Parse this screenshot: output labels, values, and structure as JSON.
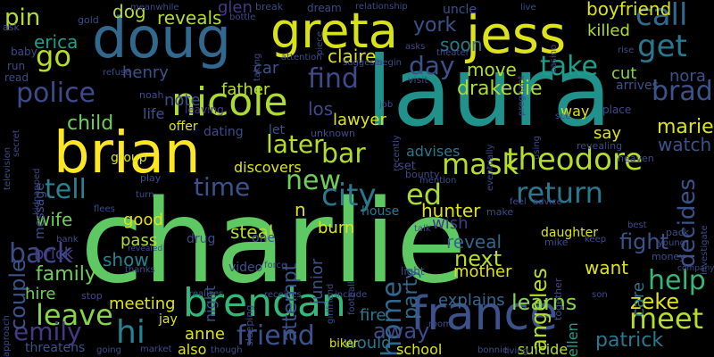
{
  "cloud": {
    "background": "#000000",
    "words": [
      {
        "text": "charlie",
        "color": "#5ec962"
      },
      {
        "text": "laura",
        "color": "#21918c"
      },
      {
        "text": "brian",
        "color": "#fde725"
      },
      {
        "text": "doug",
        "color": "#31688e"
      },
      {
        "text": "greta",
        "color": "#d8e219"
      },
      {
        "text": "jess",
        "color": "#dde318"
      },
      {
        "text": "france",
        "color": "#3b528b"
      },
      {
        "text": "nicole",
        "color": "#addc30"
      },
      {
        "text": "brendan",
        "color": "#35b779"
      },
      {
        "text": "police",
        "color": "#3e4a89"
      },
      {
        "text": "theodore",
        "color": "#b5de2b"
      },
      {
        "text": "mask",
        "color": "#b5de2b"
      },
      {
        "text": "go",
        "color": "#b5de2b"
      },
      {
        "text": "pin",
        "color": "#b5de2b"
      },
      {
        "text": "get",
        "color": "#2a788e"
      },
      {
        "text": "call",
        "color": "#31688e"
      },
      {
        "text": "brad",
        "color": "#3b528b"
      },
      {
        "text": "find",
        "color": "#3e4a89"
      },
      {
        "text": "take",
        "color": "#1f9e89"
      },
      {
        "text": "day",
        "color": "#3b528b"
      },
      {
        "text": "later",
        "color": "#b5de2b"
      },
      {
        "text": "bar",
        "color": "#addc30"
      },
      {
        "text": "tell",
        "color": "#26828e"
      },
      {
        "text": "time",
        "color": "#3b528b"
      },
      {
        "text": "new",
        "color": "#6ece58"
      },
      {
        "text": "city",
        "color": "#2a788e"
      },
      {
        "text": "ed",
        "color": "#addc30"
      },
      {
        "text": "return",
        "color": "#2a788e"
      },
      {
        "text": "decides",
        "color": "#3b528b"
      },
      {
        "text": "help",
        "color": "#35b779"
      },
      {
        "text": "meet",
        "color": "#b5de2b"
      },
      {
        "text": "hi",
        "color": "#26828e"
      },
      {
        "text": "leave",
        "color": "#86d549"
      },
      {
        "text": "back",
        "color": "#3e4a89"
      },
      {
        "text": "emily",
        "color": "#443a83"
      },
      {
        "text": "friend",
        "color": "#3b528b"
      },
      {
        "text": "home",
        "color": "#31688e"
      },
      {
        "text": "couple",
        "color": "#3b528b"
      },
      {
        "text": "child",
        "color": "#6ece58"
      },
      {
        "text": "wife",
        "color": "#6ece58"
      },
      {
        "text": "family",
        "color": "#6ece58"
      },
      {
        "text": "angeles",
        "color": "#b5de2b"
      },
      {
        "text": "next",
        "color": "#b5de2b"
      },
      {
        "text": "learns",
        "color": "#86d549"
      },
      {
        "text": "zeke",
        "color": "#dde318"
      },
      {
        "text": "patrick",
        "color": "#2a788e"
      },
      {
        "text": "away",
        "color": "#3e4a89"
      },
      {
        "text": "party",
        "color": "#31688e"
      },
      {
        "text": "fight",
        "color": "#3b528b"
      },
      {
        "text": "want",
        "color": "#dde318"
      },
      {
        "text": "move",
        "color": "#b5de2b"
      },
      {
        "text": "drakedie",
        "color": "#addc30"
      },
      {
        "text": "killed",
        "color": "#addc30"
      },
      {
        "text": "boyfriend",
        "color": "#dde318"
      },
      {
        "text": "york",
        "color": "#3b528b"
      },
      {
        "text": "soon",
        "color": "#2a788e"
      },
      {
        "text": "claire",
        "color": "#dde318"
      },
      {
        "text": "reveals",
        "color": "#b5de2b"
      },
      {
        "text": "erica",
        "color": "#1f9e89"
      },
      {
        "text": "dog",
        "color": "#b5de2b"
      },
      {
        "text": "glen",
        "color": "#443a83"
      },
      {
        "text": "henry",
        "color": "#3b528b"
      },
      {
        "text": "note",
        "color": "#3b528b"
      },
      {
        "text": "father",
        "color": "#b5de2b"
      },
      {
        "text": "car",
        "color": "#3b528b"
      },
      {
        "text": "lawyer",
        "color": "#dde318"
      },
      {
        "text": "los",
        "color": "#3e4a89"
      },
      {
        "text": "attempt",
        "color": "#3b528b"
      },
      {
        "text": "junior",
        "color": "#3b528b"
      },
      {
        "text": "hunter",
        "color": "#dde318"
      },
      {
        "text": "reveal",
        "color": "#31688e"
      },
      {
        "text": "mother",
        "color": "#dde318"
      },
      {
        "text": "explains",
        "color": "#31688e"
      },
      {
        "text": "marie",
        "color": "#dde318"
      },
      {
        "text": "watch",
        "color": "#3b528b"
      },
      {
        "text": "say",
        "color": "#dde318"
      },
      {
        "text": "cut",
        "color": "#86d549"
      },
      {
        "text": "nora",
        "color": "#3b528b"
      },
      {
        "text": "arrives",
        "color": "#3b528b"
      },
      {
        "text": "steal",
        "color": "#b5de2b"
      },
      {
        "text": "burn",
        "color": "#dde318"
      },
      {
        "text": "pass",
        "color": "#b5de2b"
      },
      {
        "text": "show",
        "color": "#26828e"
      },
      {
        "text": "good",
        "color": "#dde318"
      },
      {
        "text": "brick",
        "color": "#443a83"
      },
      {
        "text": "hire",
        "color": "#6ece58"
      },
      {
        "text": "meeting",
        "color": "#dde318"
      },
      {
        "text": "anne",
        "color": "#dde318"
      },
      {
        "text": "would",
        "color": "#2a788e"
      },
      {
        "text": "fire",
        "color": "#2a788e"
      },
      {
        "text": "school",
        "color": "#dde318"
      },
      {
        "text": "suicide",
        "color": "#b5de2b"
      },
      {
        "text": "ellen",
        "color": "#1f9e89"
      },
      {
        "text": "discovers",
        "color": "#dde318"
      },
      {
        "text": "advises",
        "color": "#2a788e"
      },
      {
        "text": "message",
        "color": "#3b528b"
      },
      {
        "text": "life",
        "color": "#3b528b"
      },
      {
        "text": "offer",
        "color": "#dde318"
      },
      {
        "text": "dating",
        "color": "#3e4a89"
      },
      {
        "text": "let",
        "color": "#3b528b"
      },
      {
        "text": "video",
        "color": "#3b528b"
      },
      {
        "text": "n",
        "color": "#dde318"
      },
      {
        "text": "one",
        "color": "#3b528b"
      },
      {
        "text": "house",
        "color": "#2a788e"
      },
      {
        "text": "drug",
        "color": "#3e4a89"
      },
      {
        "text": "group",
        "color": "#dde318"
      },
      {
        "text": "night",
        "color": "#3b528b"
      },
      {
        "text": "also",
        "color": "#dde318"
      },
      {
        "text": "jay",
        "color": "#dde318"
      },
      {
        "text": "unknown",
        "color": "#3e4a89"
      },
      {
        "text": "realizes",
        "color": "#3b528b"
      },
      {
        "text": "receives",
        "color": "#3b528b"
      },
      {
        "text": "care",
        "color": "#2a788e"
      },
      {
        "text": "way",
        "color": "#dde318"
      },
      {
        "text": "uncle",
        "color": "#3b528b"
      },
      {
        "text": "biker",
        "color": "#dde318"
      },
      {
        "text": "gold",
        "color": "#3e4a89"
      },
      {
        "text": "ask",
        "color": "#3e4a89"
      },
      {
        "text": "baby",
        "color": "#3e4a89"
      },
      {
        "text": "run",
        "color": "#3e4a89"
      },
      {
        "text": "read",
        "color": "#3e4a89"
      },
      {
        "text": "television",
        "color": "#3e4a89"
      },
      {
        "text": "kidnapped",
        "color": "#3e4a89"
      },
      {
        "text": "secret",
        "color": "#3e4a89"
      },
      {
        "text": "approach",
        "color": "#3e4a89"
      },
      {
        "text": "threatens",
        "color": "#3b528b"
      },
      {
        "text": "meanwhile",
        "color": "#3e4a89"
      },
      {
        "text": "refuse",
        "color": "#3e4a89"
      },
      {
        "text": "noah",
        "color": "#3e4a89"
      },
      {
        "text": "leaving",
        "color": "#443a83"
      },
      {
        "text": "taking",
        "color": "#3e4a89"
      },
      {
        "text": "bottle",
        "color": "#3e4a89"
      },
      {
        "text": "break",
        "color": "#3e4a89"
      },
      {
        "text": "dream",
        "color": "#3e4a89"
      },
      {
        "text": "relationship",
        "color": "#3e4a89"
      },
      {
        "text": "attention",
        "color": "#3e4a89"
      },
      {
        "text": "suggests",
        "color": "#3e4a89"
      },
      {
        "text": "begin",
        "color": "#3e4a89"
      },
      {
        "text": "theater",
        "color": "#3e4a89"
      },
      {
        "text": "asks",
        "color": "#3e4a89"
      },
      {
        "text": "piece",
        "color": "#3e4a89"
      },
      {
        "text": "live",
        "color": "#3e4a89"
      },
      {
        "text": "casino",
        "color": "#3e4a89"
      },
      {
        "text": "pregnant",
        "color": "#3e4a89"
      },
      {
        "text": "rise",
        "color": "#3e4a89"
      },
      {
        "text": "visit",
        "color": "#3e4a89"
      },
      {
        "text": "job",
        "color": "#3e4a89"
      },
      {
        "text": "recently",
        "color": "#3e4a89"
      },
      {
        "text": "eventually",
        "color": "#3e4a89"
      },
      {
        "text": "using",
        "color": "#3e4a89"
      },
      {
        "text": "see",
        "color": "#3e4a89"
      },
      {
        "text": "place",
        "color": "#3e4a89"
      },
      {
        "text": "revealing",
        "color": "#3e4a89"
      },
      {
        "text": "heaven",
        "color": "#3e4a89"
      },
      {
        "text": "mention",
        "color": "#3e4a89"
      },
      {
        "text": "bounty",
        "color": "#3e4a89"
      },
      {
        "text": "feel",
        "color": "#3e4a89"
      },
      {
        "text": "advice",
        "color": "#3e4a89"
      },
      {
        "text": "make",
        "color": "#3e4a89"
      },
      {
        "text": "set",
        "color": "#3e4a89"
      },
      {
        "text": "mike",
        "color": "#3e4a89"
      },
      {
        "text": "best",
        "color": "#3e4a89"
      },
      {
        "text": "investigate",
        "color": "#3e4a89"
      },
      {
        "text": "pack",
        "color": "#3e4a89"
      },
      {
        "text": "young",
        "color": "#3e4a89"
      },
      {
        "text": "company",
        "color": "#3e4a89"
      },
      {
        "text": "money",
        "color": "#3e4a89"
      },
      {
        "text": "keep",
        "color": "#3e4a89"
      },
      {
        "text": "together",
        "color": "#3e4a89"
      },
      {
        "text": "talk",
        "color": "#3e4a89"
      },
      {
        "text": "light",
        "color": "#3e4a89"
      },
      {
        "text": "wish",
        "color": "#443a83"
      },
      {
        "text": "sleeping",
        "color": "#3e4a89"
      },
      {
        "text": "force",
        "color": "#3e4a89"
      },
      {
        "text": "girlfriend",
        "color": "#3e4a89"
      },
      {
        "text": "football",
        "color": "#3e4a89"
      },
      {
        "text": "include",
        "color": "#3e4a89"
      },
      {
        "text": "room",
        "color": "#3e4a89"
      },
      {
        "text": "bonnie",
        "color": "#3e4a89"
      },
      {
        "text": "living",
        "color": "#3e4a89"
      },
      {
        "text": "son",
        "color": "#3e4a89"
      },
      {
        "text": "though",
        "color": "#3e4a89"
      },
      {
        "text": "market",
        "color": "#3e4a89"
      },
      {
        "text": "going",
        "color": "#3e4a89"
      },
      {
        "text": "thanks",
        "color": "#3e4a89"
      },
      {
        "text": "stop",
        "color": "#3e4a89"
      },
      {
        "text": "revealed",
        "color": "#3e4a89"
      },
      {
        "text": "bank",
        "color": "#3e4a89"
      },
      {
        "text": "flees",
        "color": "#3e4a89"
      },
      {
        "text": "play",
        "color": "#3e4a89"
      },
      {
        "text": "turn",
        "color": "#3e4a89"
      },
      {
        "text": "daughter",
        "color": "#dde318"
      }
    ]
  }
}
